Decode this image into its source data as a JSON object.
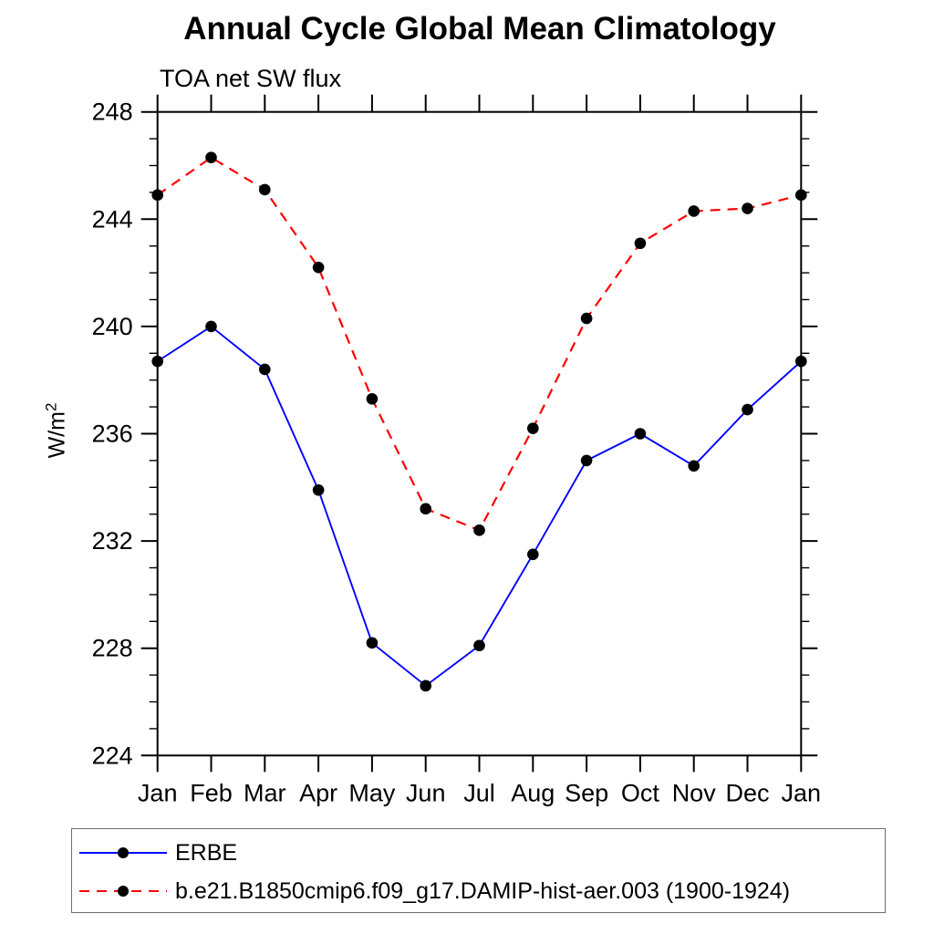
{
  "page": {
    "background": "#ffffff"
  },
  "chart_data": {
    "type": "line",
    "title": "Annual Cycle Global Mean Climatology",
    "subtitle": "TOA net SW flux",
    "ylabel": "W/m",
    "ylabel_superscript": "2",
    "xlabel": "",
    "categories": [
      "Jan",
      "Feb",
      "Mar",
      "Apr",
      "May",
      "Jun",
      "Jul",
      "Aug",
      "Sep",
      "Oct",
      "Nov",
      "Dec",
      "Jan"
    ],
    "ylim": [
      224,
      248
    ],
    "y_tick_major_step": 4,
    "y_tick_minor_step": 1,
    "y_tick_labels": [
      "224",
      "228",
      "232",
      "236",
      "240",
      "244",
      "248"
    ],
    "grid": false,
    "legend_position": "bottom",
    "frame_color": "#000000",
    "marker_color": "#000000",
    "series": [
      {
        "name": "ERBE",
        "color": "#0000ff",
        "line_style": "solid",
        "marker": "circle",
        "values": [
          238.7,
          240.0,
          238.4,
          233.9,
          228.2,
          226.6,
          228.1,
          231.5,
          235.0,
          236.0,
          234.8,
          236.9,
          238.7
        ]
      },
      {
        "name": "b.e21.B1850cmip6.f09_g17.DAMIP-hist-aer.003 (1900-1924)",
        "color": "#ff0000",
        "line_style": "dashed",
        "marker": "circle",
        "values": [
          244.9,
          246.3,
          245.1,
          242.2,
          237.3,
          233.2,
          232.4,
          236.2,
          240.3,
          243.1,
          244.3,
          244.4,
          244.9
        ]
      }
    ]
  }
}
